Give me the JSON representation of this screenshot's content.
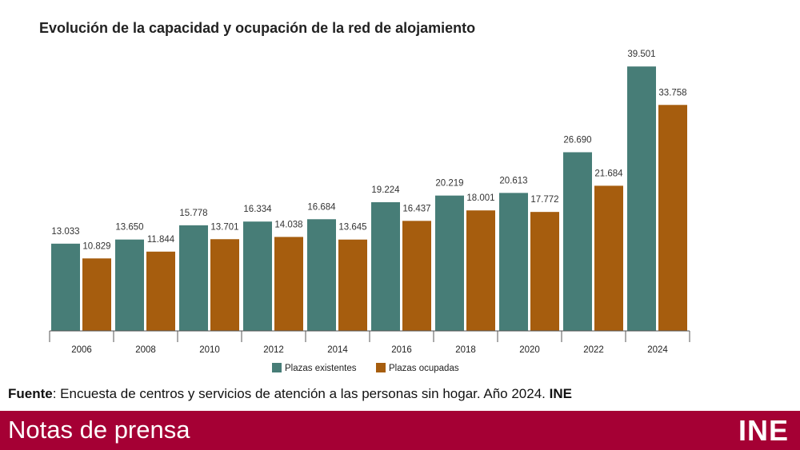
{
  "chart_data": {
    "type": "bar",
    "title": "Evolución de la capacidad y ocupación de la red de alojamiento",
    "categories": [
      "2006",
      "2008",
      "2010",
      "2012",
      "2014",
      "2016",
      "2018",
      "2020",
      "2022",
      "2024"
    ],
    "series": [
      {
        "name": "Plazas existentes",
        "color": "#477d77",
        "values": [
          13033,
          13650,
          15778,
          16334,
          16684,
          19224,
          20219,
          20613,
          26690,
          39501
        ],
        "labels": [
          "13.033",
          "13.650",
          "15.778",
          "16.334",
          "16.684",
          "19.224",
          "20.219",
          "20.613",
          "26.690",
          "39.501"
        ]
      },
      {
        "name": "Plazas ocupadas",
        "color": "#a65d0e",
        "values": [
          10829,
          11844,
          13701,
          14038,
          13645,
          16437,
          18001,
          17772,
          21684,
          33758
        ],
        "labels": [
          "10.829",
          "11.844",
          "13.701",
          "14.038",
          "13.645",
          "16.437",
          "18.001",
          "17.772",
          "21.684",
          "33.758"
        ]
      }
    ],
    "xlabel": "",
    "ylabel": "",
    "ylim": [
      0,
      40000
    ],
    "grid": false,
    "legend": "bottom-center"
  },
  "source": {
    "label": "Fuente",
    "text": ": Encuesta de centros y servicios de atención a las personas sin hogar. Año 2024. ",
    "org": "INE"
  },
  "footer": {
    "title": "Notas de prensa",
    "logo": "INE",
    "color": "#a50034"
  }
}
